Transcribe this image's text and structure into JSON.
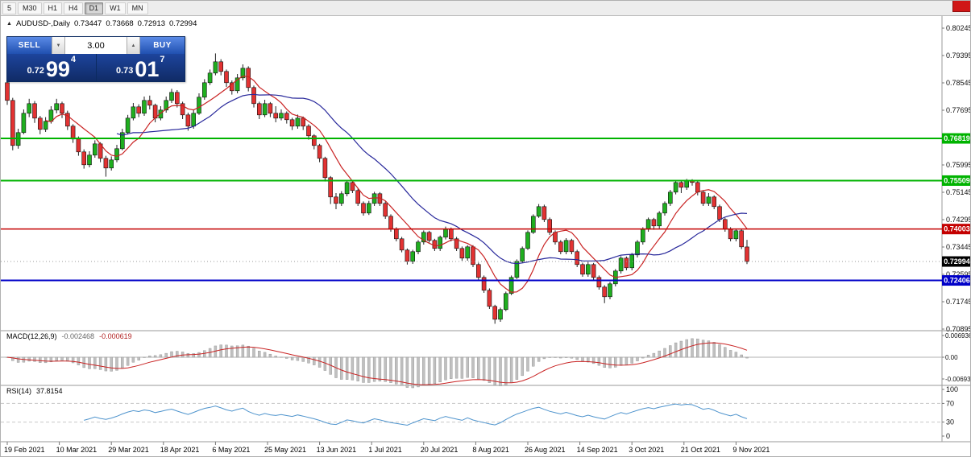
{
  "chrome": {
    "badge_color": "#d01616"
  },
  "toolbar": {
    "periods": [
      "5",
      "M30",
      "H1",
      "H4",
      "D1",
      "W1",
      "MN"
    ],
    "active": "D1"
  },
  "chart_header": {
    "collapse_icon": "▲",
    "symbol": "AUDUSD-,Daily",
    "open": "0.73447",
    "high": "0.73668",
    "low": "0.72913",
    "close": "0.72994"
  },
  "trade_panel": {
    "sell_label": "SELL",
    "buy_label": "BUY",
    "volume": "3.00",
    "stepper_down_icon": "▼",
    "stepper_up_icon": "▲",
    "sell_price": {
      "prefix": "0.72",
      "big": "99",
      "sup": "4"
    },
    "buy_price": {
      "prefix": "0.73",
      "big": "01",
      "sup": "7"
    }
  },
  "chart_data": {
    "type": "candlestick",
    "symbol": "AUDUSD",
    "timeframe": "Daily",
    "title": "AUDUSD-,Daily 0.73447 0.73668 0.72913 0.72994",
    "x_labels": [
      "19 Feb 2021",
      "10 Mar 2021",
      "29 Mar 2021",
      "18 Apr 2021",
      "6 May 2021",
      "25 May 2021",
      "13 Jun 2021",
      "1 Jul 2021",
      "20 Jul 2021",
      "8 Aug 2021",
      "26 Aug 2021",
      "14 Sep 2021",
      "3 Oct 2021",
      "21 Oct 2021",
      "9 Nov 2021"
    ],
    "y_axis_labels": [
      "0.80245",
      "0.79395",
      "0.78545",
      "0.77695",
      "0.76845",
      "0.75995",
      "0.75145",
      "0.74295",
      "0.73445",
      "0.72595",
      "0.71745",
      "0.70895"
    ],
    "ylim": [
      0.70895,
      0.80595
    ],
    "candles": [
      [
        0.7855,
        0.7872,
        0.7786,
        0.78
      ],
      [
        0.78,
        0.7808,
        0.7645,
        0.766
      ],
      [
        0.766,
        0.7712,
        0.765,
        0.77
      ],
      [
        0.77,
        0.7772,
        0.7695,
        0.776
      ],
      [
        0.776,
        0.7805,
        0.7748,
        0.779
      ],
      [
        0.779,
        0.7798,
        0.773,
        0.7745
      ],
      [
        0.7745,
        0.7752,
        0.7695,
        0.771
      ],
      [
        0.771,
        0.7748,
        0.7702,
        0.7735
      ],
      [
        0.7735,
        0.7782,
        0.7728,
        0.777
      ],
      [
        0.777,
        0.7805,
        0.776,
        0.779
      ],
      [
        0.779,
        0.7796,
        0.7745,
        0.776
      ],
      [
        0.776,
        0.7768,
        0.7708,
        0.772
      ],
      [
        0.772,
        0.7726,
        0.7668,
        0.768
      ],
      [
        0.768,
        0.7688,
        0.7628,
        0.764
      ],
      [
        0.764,
        0.7648,
        0.7588,
        0.76
      ],
      [
        0.76,
        0.7642,
        0.7592,
        0.763
      ],
      [
        0.763,
        0.7676,
        0.7622,
        0.7665
      ],
      [
        0.7665,
        0.767,
        0.7608,
        0.762
      ],
      [
        0.762,
        0.7628,
        0.7563,
        0.759
      ],
      [
        0.759,
        0.7626,
        0.7582,
        0.7615
      ],
      [
        0.7615,
        0.7662,
        0.7608,
        0.765
      ],
      [
        0.765,
        0.7712,
        0.7645,
        0.77
      ],
      [
        0.77,
        0.7755,
        0.7694,
        0.7745
      ],
      [
        0.7745,
        0.7792,
        0.7738,
        0.778
      ],
      [
        0.778,
        0.7788,
        0.7748,
        0.776
      ],
      [
        0.776,
        0.7812,
        0.7752,
        0.78
      ],
      [
        0.78,
        0.7815,
        0.7772,
        0.7785
      ],
      [
        0.7785,
        0.779,
        0.7732,
        0.7745
      ],
      [
        0.7745,
        0.7782,
        0.7738,
        0.777
      ],
      [
        0.777,
        0.7812,
        0.7762,
        0.78
      ],
      [
        0.78,
        0.7836,
        0.7792,
        0.7825
      ],
      [
        0.7825,
        0.7832,
        0.7778,
        0.779
      ],
      [
        0.779,
        0.7796,
        0.7742,
        0.7755
      ],
      [
        0.7755,
        0.7762,
        0.7706,
        0.772
      ],
      [
        0.772,
        0.7772,
        0.7712,
        0.776
      ],
      [
        0.776,
        0.7822,
        0.7755,
        0.781
      ],
      [
        0.781,
        0.7866,
        0.7802,
        0.7855
      ],
      [
        0.7855,
        0.7896,
        0.7848,
        0.7885
      ],
      [
        0.7885,
        0.7946,
        0.7878,
        0.792
      ],
      [
        0.792,
        0.7928,
        0.7878,
        0.789
      ],
      [
        0.789,
        0.7896,
        0.7842,
        0.7855
      ],
      [
        0.7855,
        0.7862,
        0.7818,
        0.783
      ],
      [
        0.783,
        0.7882,
        0.7822,
        0.787
      ],
      [
        0.787,
        0.7912,
        0.7862,
        0.79
      ],
      [
        0.79,
        0.7906,
        0.7828,
        0.784
      ],
      [
        0.784,
        0.7846,
        0.7778,
        0.779
      ],
      [
        0.779,
        0.7796,
        0.7742,
        0.7755
      ],
      [
        0.7755,
        0.7802,
        0.7748,
        0.779
      ],
      [
        0.779,
        0.7795,
        0.7748,
        0.776
      ],
      [
        0.776,
        0.7782,
        0.7732,
        0.7745
      ],
      [
        0.7745,
        0.7772,
        0.7738,
        0.776
      ],
      [
        0.776,
        0.7766,
        0.7728,
        0.774
      ],
      [
        0.774,
        0.7746,
        0.7708,
        0.772
      ],
      [
        0.772,
        0.7756,
        0.7712,
        0.7745
      ],
      [
        0.7745,
        0.775,
        0.7708,
        0.772
      ],
      [
        0.772,
        0.7726,
        0.7678,
        0.769
      ],
      [
        0.769,
        0.7695,
        0.7648,
        0.766
      ],
      [
        0.766,
        0.7665,
        0.7608,
        0.762
      ],
      [
        0.762,
        0.7625,
        0.7548,
        0.756
      ],
      [
        0.756,
        0.7565,
        0.7478,
        0.75
      ],
      [
        0.75,
        0.7512,
        0.7462,
        0.748
      ],
      [
        0.748,
        0.7518,
        0.7472,
        0.751
      ],
      [
        0.751,
        0.7552,
        0.7502,
        0.7545
      ],
      [
        0.7545,
        0.755,
        0.7512,
        0.752
      ],
      [
        0.752,
        0.7526,
        0.7472,
        0.748
      ],
      [
        0.748,
        0.7486,
        0.7442,
        0.745
      ],
      [
        0.745,
        0.7488,
        0.7444,
        0.748
      ],
      [
        0.748,
        0.7516,
        0.7472,
        0.751
      ],
      [
        0.751,
        0.7515,
        0.7472,
        0.748
      ],
      [
        0.748,
        0.7486,
        0.7432,
        0.744
      ],
      [
        0.744,
        0.7446,
        0.7392,
        0.74
      ],
      [
        0.74,
        0.7406,
        0.7362,
        0.737
      ],
      [
        0.737,
        0.7376,
        0.7328,
        0.7335
      ],
      [
        0.7335,
        0.734,
        0.729,
        0.73
      ],
      [
        0.73,
        0.7336,
        0.7292,
        0.733
      ],
      [
        0.733,
        0.7366,
        0.7322,
        0.736
      ],
      [
        0.736,
        0.7396,
        0.7352,
        0.739
      ],
      [
        0.739,
        0.7395,
        0.7358,
        0.7365
      ],
      [
        0.7365,
        0.737,
        0.7332,
        0.734
      ],
      [
        0.734,
        0.738,
        0.7332,
        0.7375
      ],
      [
        0.7375,
        0.7408,
        0.7368,
        0.74
      ],
      [
        0.74,
        0.7405,
        0.7362,
        0.737
      ],
      [
        0.737,
        0.7376,
        0.7332,
        0.734
      ],
      [
        0.734,
        0.7346,
        0.7302,
        0.731
      ],
      [
        0.731,
        0.735,
        0.7302,
        0.7345
      ],
      [
        0.7345,
        0.735,
        0.7282,
        0.729
      ],
      [
        0.729,
        0.7296,
        0.7242,
        0.725
      ],
      [
        0.725,
        0.7256,
        0.7202,
        0.721
      ],
      [
        0.721,
        0.7216,
        0.7152,
        0.716
      ],
      [
        0.716,
        0.7165,
        0.7106,
        0.712
      ],
      [
        0.712,
        0.7156,
        0.7112,
        0.715
      ],
      [
        0.715,
        0.7206,
        0.7145,
        0.72
      ],
      [
        0.72,
        0.7256,
        0.7195,
        0.725
      ],
      [
        0.725,
        0.7306,
        0.7245,
        0.73
      ],
      [
        0.73,
        0.7346,
        0.7295,
        0.734
      ],
      [
        0.734,
        0.7396,
        0.7335,
        0.739
      ],
      [
        0.739,
        0.7446,
        0.7385,
        0.744
      ],
      [
        0.744,
        0.7478,
        0.7435,
        0.747
      ],
      [
        0.747,
        0.7476,
        0.7422,
        0.743
      ],
      [
        0.743,
        0.7436,
        0.7382,
        0.739
      ],
      [
        0.739,
        0.7396,
        0.7352,
        0.736
      ],
      [
        0.736,
        0.7366,
        0.7322,
        0.733
      ],
      [
        0.733,
        0.7372,
        0.7322,
        0.7365
      ],
      [
        0.7365,
        0.737,
        0.7322,
        0.733
      ],
      [
        0.733,
        0.7336,
        0.7282,
        0.729
      ],
      [
        0.729,
        0.7296,
        0.7252,
        0.726
      ],
      [
        0.726,
        0.7298,
        0.7252,
        0.729
      ],
      [
        0.729,
        0.7295,
        0.7242,
        0.725
      ],
      [
        0.725,
        0.7256,
        0.7212,
        0.722
      ],
      [
        0.722,
        0.7226,
        0.717,
        0.719
      ],
      [
        0.719,
        0.7236,
        0.7182,
        0.723
      ],
      [
        0.723,
        0.7276,
        0.7222,
        0.727
      ],
      [
        0.727,
        0.7316,
        0.7262,
        0.731
      ],
      [
        0.731,
        0.7315,
        0.7272,
        0.728
      ],
      [
        0.728,
        0.7326,
        0.7272,
        0.732
      ],
      [
        0.732,
        0.7366,
        0.7312,
        0.736
      ],
      [
        0.736,
        0.7406,
        0.7352,
        0.74
      ],
      [
        0.74,
        0.7436,
        0.7392,
        0.743
      ],
      [
        0.743,
        0.7435,
        0.7398,
        0.741
      ],
      [
        0.741,
        0.7456,
        0.7402,
        0.745
      ],
      [
        0.745,
        0.7486,
        0.7442,
        0.748
      ],
      [
        0.748,
        0.7522,
        0.7472,
        0.7515
      ],
      [
        0.7515,
        0.7552,
        0.7508,
        0.7545
      ],
      [
        0.7545,
        0.755,
        0.7512,
        0.753
      ],
      [
        0.753,
        0.7556,
        0.7522,
        0.755
      ],
      [
        0.755,
        0.7555,
        0.7535,
        0.7545
      ],
      [
        0.7545,
        0.755,
        0.7505,
        0.7515
      ],
      [
        0.7515,
        0.752,
        0.7472,
        0.748
      ],
      [
        0.748,
        0.7512,
        0.7472,
        0.75
      ],
      [
        0.75,
        0.7505,
        0.7462,
        0.747
      ],
      [
        0.747,
        0.7476,
        0.7422,
        0.743
      ],
      [
        0.743,
        0.7435,
        0.7392,
        0.74
      ],
      [
        0.74,
        0.7406,
        0.7362,
        0.737
      ],
      [
        0.737,
        0.7402,
        0.7362,
        0.7395
      ],
      [
        0.7395,
        0.74,
        0.7338,
        0.7345
      ],
      [
        0.73447,
        0.73668,
        0.72913,
        0.72994
      ]
    ],
    "colors": {
      "bull": "#1fae1f",
      "bear": "#e23232",
      "wick": "#222222"
    },
    "overlays": {
      "ma_fast": {
        "period": 8,
        "color": "#c92323"
      },
      "ma_slow": {
        "period": 21,
        "color": "#28289b"
      }
    },
    "hlines": [
      {
        "label": "0.76819",
        "price": 0.76819,
        "color": "#00b300",
        "width": 2
      },
      {
        "label": "0.75509",
        "price": 0.75509,
        "color": "#00b300",
        "width": 2
      },
      {
        "label": "0.74003",
        "price": 0.74003,
        "color": "#c40000",
        "width": 1.5
      },
      {
        "label": "0.72406",
        "price": 0.72406,
        "color": "#0000c8",
        "width": 2
      }
    ],
    "current_price": {
      "label": "0.72994",
      "value": 0.72994,
      "tag_color": "#000000"
    },
    "macd": {
      "label": "MACD(12,26,9)",
      "value_main": "-0.002468",
      "value_signal": "-0.000619",
      "params": [
        12,
        26,
        9
      ],
      "axis_labels": [
        "0.006936",
        "0.00",
        "-0.006936"
      ],
      "histogram_color": "#c0c0c0",
      "signal_color": "#c92323"
    },
    "rsi": {
      "label": "RSI(14)",
      "value": "37.8154",
      "period": 14,
      "levels": [
        "100",
        "70",
        "30",
        "0"
      ],
      "line_color": "#4f94cd"
    }
  }
}
